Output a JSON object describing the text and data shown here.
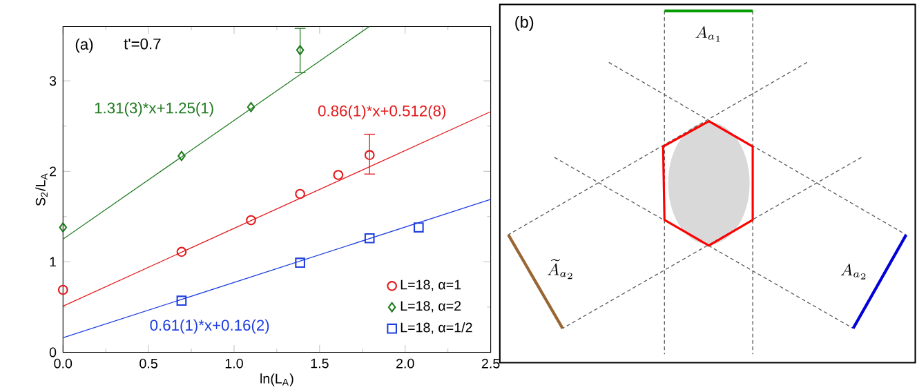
{
  "chart_data": [
    {
      "type": "scatter",
      "xlabel": "ln(L$_{A}$)",
      "ylabel": "S$_{2}$/L$_{A}$",
      "xlim": [
        0,
        2.5
      ],
      "ylim": [
        0,
        3.6
      ],
      "xticks": [
        {
          "value": 0,
          "label": "0.0"
        },
        0.5,
        {
          "value": 1,
          "label": "1.0"
        },
        1.5,
        {
          "value": 2,
          "label": "2.0"
        },
        2.5
      ],
      "yticks": [
        0,
        1,
        2,
        3
      ],
      "grid": false,
      "legend": "bottom right",
      "annotations": [
        "(a)",
        "t'=0.7",
        "0.86(1)*x+0.512(8)",
        "1.31(3)*x+1.25(1)",
        "0.61(1)*x+0.16(2)"
      ],
      "series": [
        {
          "name": "L=18, α=1",
          "color": "#e31a1c",
          "marker": "circle",
          "x": [
            0,
            0.693,
            1.099,
            1.386,
            1.609,
            1.792
          ],
          "values": [
            0.69,
            1.11,
            1.46,
            1.75,
            1.96,
            2.18
          ],
          "errors": [
            null,
            null,
            null,
            null,
            null,
            [
              1.97,
              2.41
            ]
          ]
        },
        {
          "name": "L=18, α=2",
          "color": "#1f7a1f",
          "marker": "diamond",
          "x": [
            0,
            0.693,
            1.099,
            1.386
          ],
          "values": [
            1.38,
            2.17,
            2.71,
            3.34
          ],
          "errors": [
            null,
            null,
            null,
            [
              3.09,
              3.58
            ]
          ]
        },
        {
          "name": "L=18, α=1/2",
          "color": "#1f3fe0",
          "marker": "square",
          "x": [
            0.693,
            1.386,
            1.792,
            2.079
          ],
          "values": [
            0.57,
            0.99,
            1.26,
            1.38
          ]
        },
        {
          "type": "line",
          "color": "#e31a1c",
          "marker": "none",
          "x": [
            0,
            2.5
          ],
          "values": [
            0.51,
            2.66
          ]
        },
        {
          "type": "line",
          "color": "#1f7a1f",
          "marker": "none",
          "x": [
            0,
            1.79
          ],
          "values": [
            1.25,
            3.6
          ]
        },
        {
          "type": "line",
          "color": "#1f3fe0",
          "marker": "none",
          "x": [
            0,
            2.5
          ],
          "values": [
            0.16,
            1.69
          ]
        }
      ]
    },
    {
      "type": "other",
      "annotations": [
        "(b)",
        "A_{a_1}",
        "\\widetilde{A}_{a_2}",
        "A_{a_2}"
      ]
    }
  ]
}
